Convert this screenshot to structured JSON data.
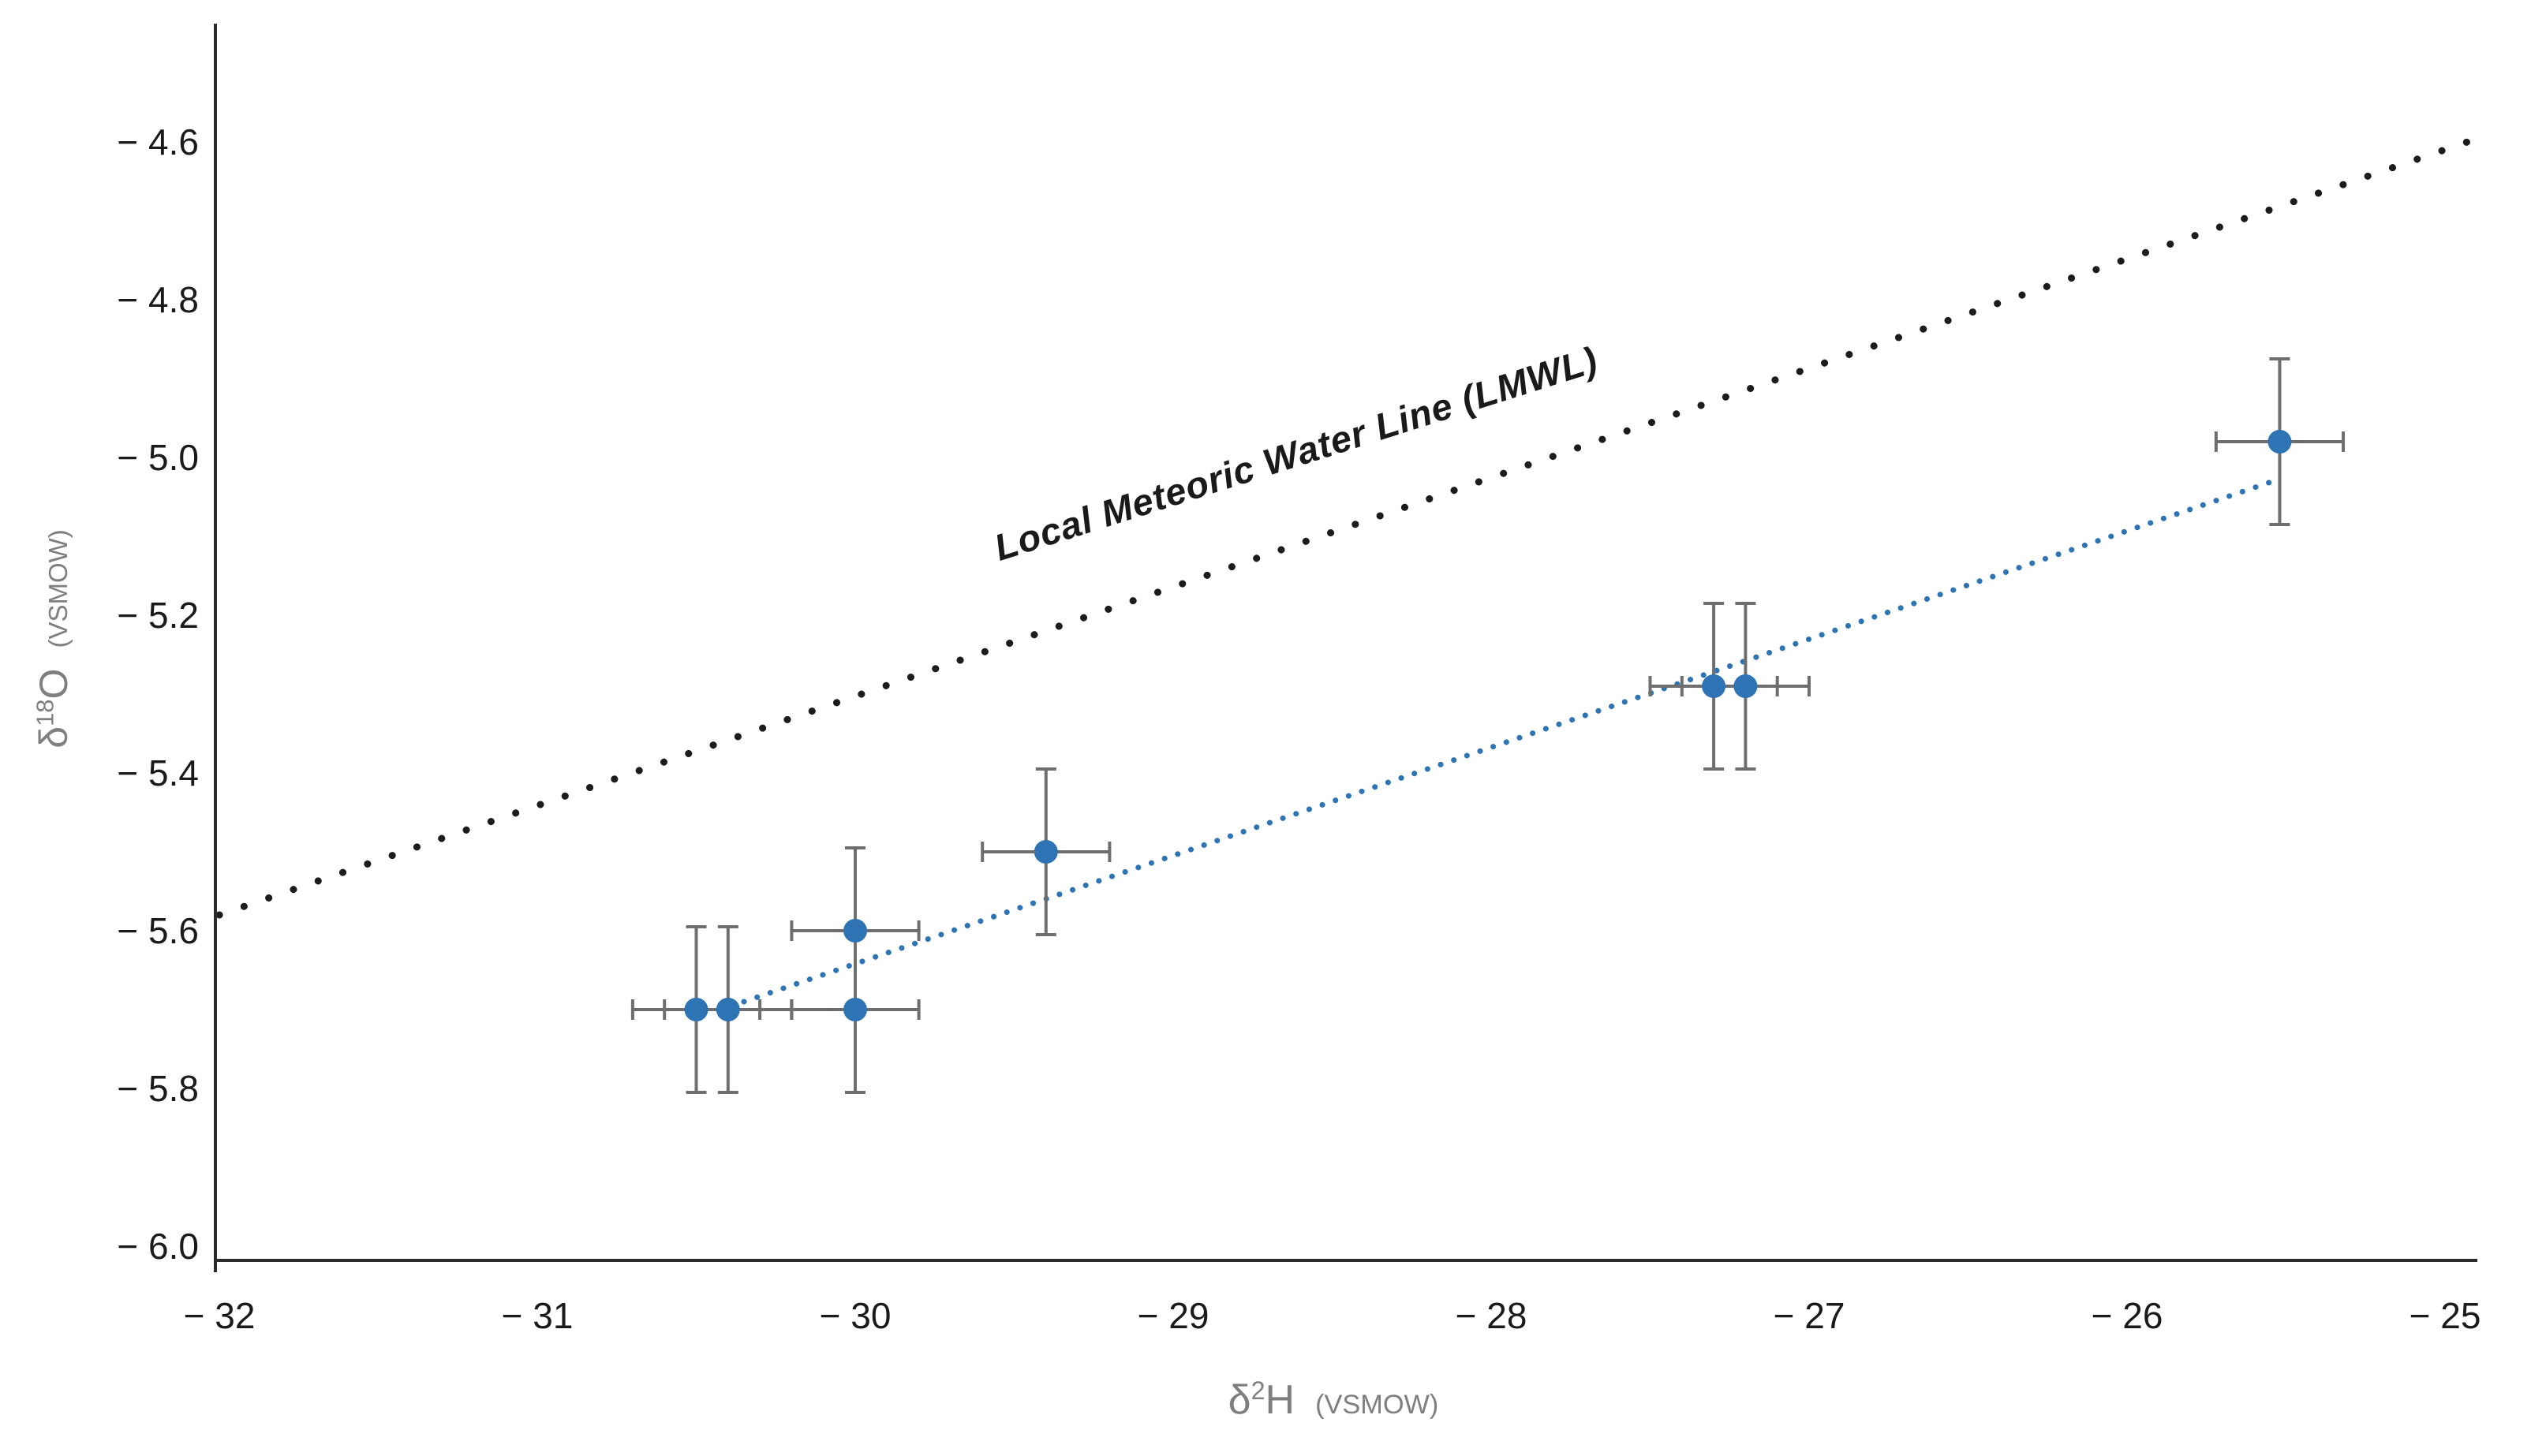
{
  "chart_data": {
    "type": "scatter",
    "title": "",
    "x_axis": {
      "label_delta": "δ",
      "label_sup": "2",
      "label_symbol": "H",
      "label_units": "(VSMOW)",
      "range": [
        -32,
        -25
      ],
      "ticks": [
        {
          "value": -32,
          "label": "− 32"
        },
        {
          "value": -31,
          "label": "− 31"
        },
        {
          "value": -30,
          "label": "− 30"
        },
        {
          "value": -29,
          "label": "− 29"
        },
        {
          "value": -28,
          "label": "− 28"
        },
        {
          "value": -27,
          "label": "− 27"
        },
        {
          "value": -26,
          "label": "− 26"
        },
        {
          "value": -25,
          "label": "− 25"
        }
      ]
    },
    "y_axis": {
      "label_delta": "δ",
      "label_sup": "18",
      "label_symbol": "O",
      "label_units": "(VSMOW)",
      "range": [
        -6.05,
        -4.45
      ],
      "ticks": [
        {
          "value": -4.6,
          "label": "− 4.6"
        },
        {
          "value": -4.8,
          "label": "− 4.8"
        },
        {
          "value": -5.0,
          "label": "− 5.0"
        },
        {
          "value": -5.2,
          "label": "− 5.2"
        },
        {
          "value": -5.4,
          "label": "− 5.4"
        },
        {
          "value": -5.6,
          "label": "− 5.6"
        },
        {
          "value": -5.8,
          "label": "− 5.8"
        },
        {
          "value": -6.0,
          "label": "− 6.0"
        }
      ]
    },
    "points": [
      {
        "x": -30.5,
        "y": -5.7,
        "x_err": 0.2,
        "y_err": 0.105
      },
      {
        "x": -30.4,
        "y": -5.7,
        "x_err": 0.2,
        "y_err": 0.105
      },
      {
        "x": -30.0,
        "y": -5.6,
        "x_err": 0.2,
        "y_err": 0.105
      },
      {
        "x": -30.0,
        "y": -5.7,
        "x_err": 0.2,
        "y_err": 0.105
      },
      {
        "x": -29.4,
        "y": -5.5,
        "x_err": 0.2,
        "y_err": 0.105
      },
      {
        "x": -27.3,
        "y": -5.29,
        "x_err": 0.2,
        "y_err": 0.105
      },
      {
        "x": -27.2,
        "y": -5.29,
        "x_err": 0.2,
        "y_err": 0.105
      },
      {
        "x": -25.52,
        "y": -4.98,
        "x_err": 0.2,
        "y_err": 0.105
      }
    ],
    "trend_line": {
      "x1": -30.35,
      "y1": -5.69,
      "x2": -25.54,
      "y2": -5.03,
      "style": "dotted"
    },
    "lmwl_line": {
      "x1": -32.0,
      "y1": -5.58,
      "x2": -24.93,
      "y2": -4.6,
      "style": "dotted",
      "label": "Local Meteoric Water Line (LMWL)"
    },
    "legend_position": "none",
    "grid": false,
    "colors": {
      "point": "#2E74B5",
      "trend": "#2E74B5",
      "lmwl": "#1c1c1c",
      "error_bar": "#6e6e6e",
      "axis": "#2b2b2b",
      "tick_text": "#1a1a1a",
      "axis_title_text": "#7f7f7f"
    }
  }
}
